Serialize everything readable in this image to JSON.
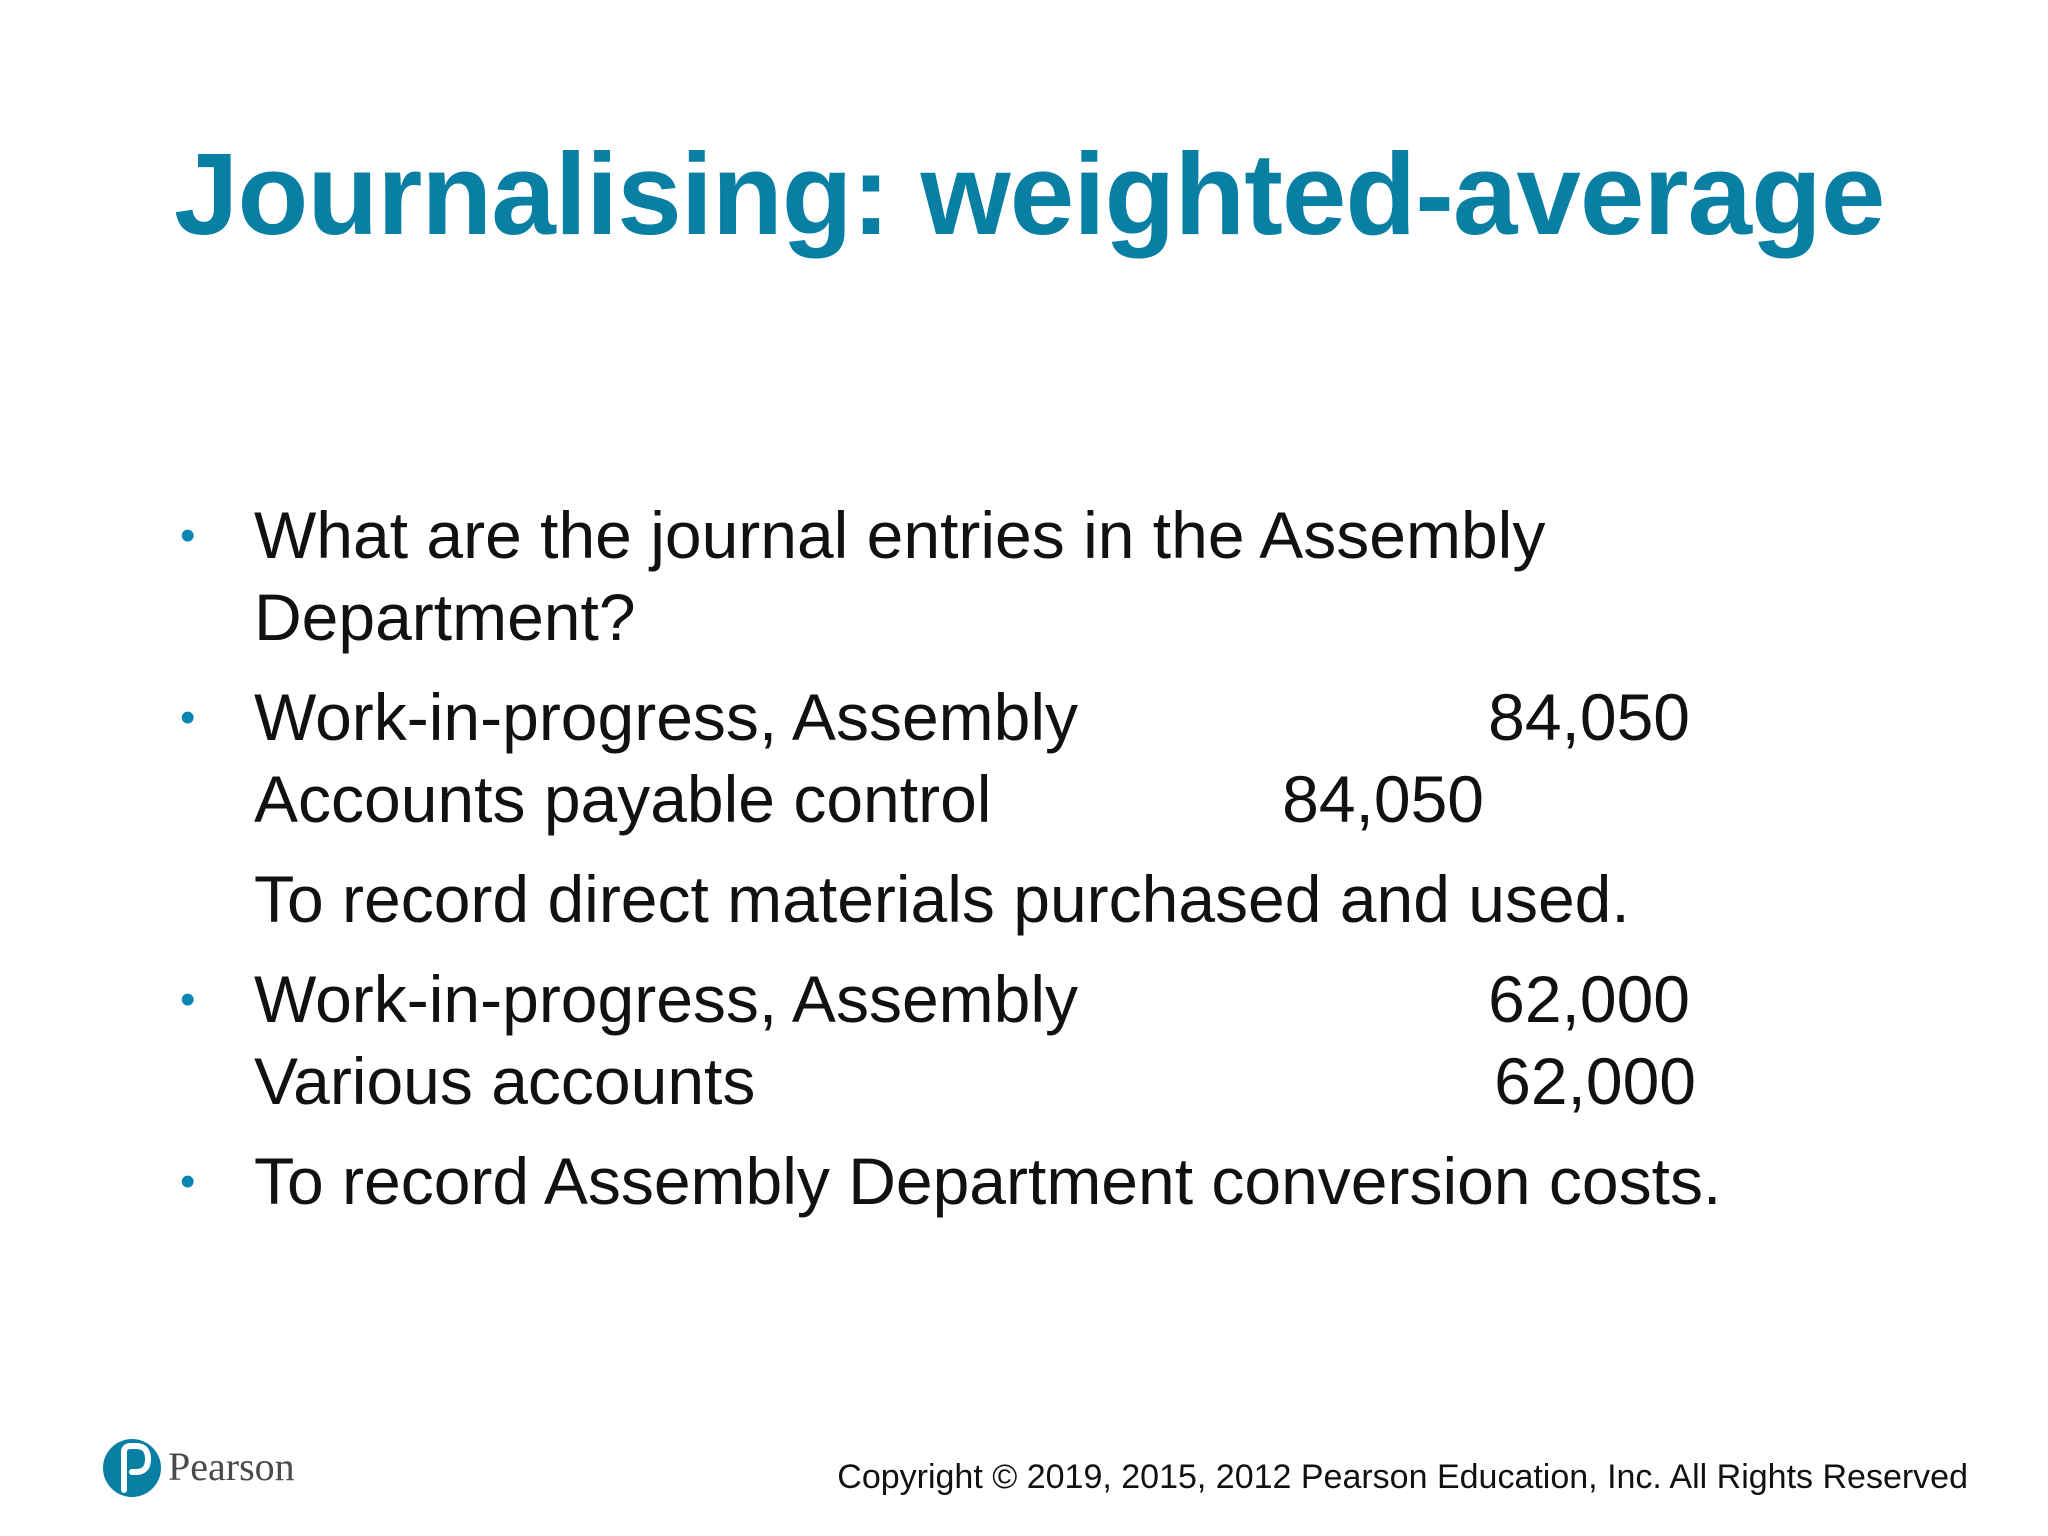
{
  "slide": {
    "title": "Journalising: weighted-average",
    "bullets": [
      {
        "lines": [
          "What are the journal entries in the Assembly",
          "Department?"
        ]
      },
      {
        "entry_1": {
          "debit_account": "Work-in-progress, Assembly",
          "debit_amount": "84,050",
          "credit_account": "Accounts payable control",
          "credit_amount": "84,050",
          "narration": "To record direct materials purchased and used."
        }
      },
      {
        "entry_2": {
          "debit_account": "Work-in-progress, Assembly",
          "debit_amount": "62,000",
          "credit_account": "Various accounts",
          "credit_amount": "62,000"
        }
      },
      {
        "lines": [
          "To record Assembly Department conversion costs."
        ]
      }
    ],
    "bullet_color": "#0a86b0",
    "title_color": "#0a7fa4"
  },
  "footer": {
    "logo_text": "Pearson",
    "logo_icon": "pearson-p-logo",
    "copyright": "Copyright © 2019, 2015, 2012 Pearson Education, Inc. All Rights Reserved"
  }
}
